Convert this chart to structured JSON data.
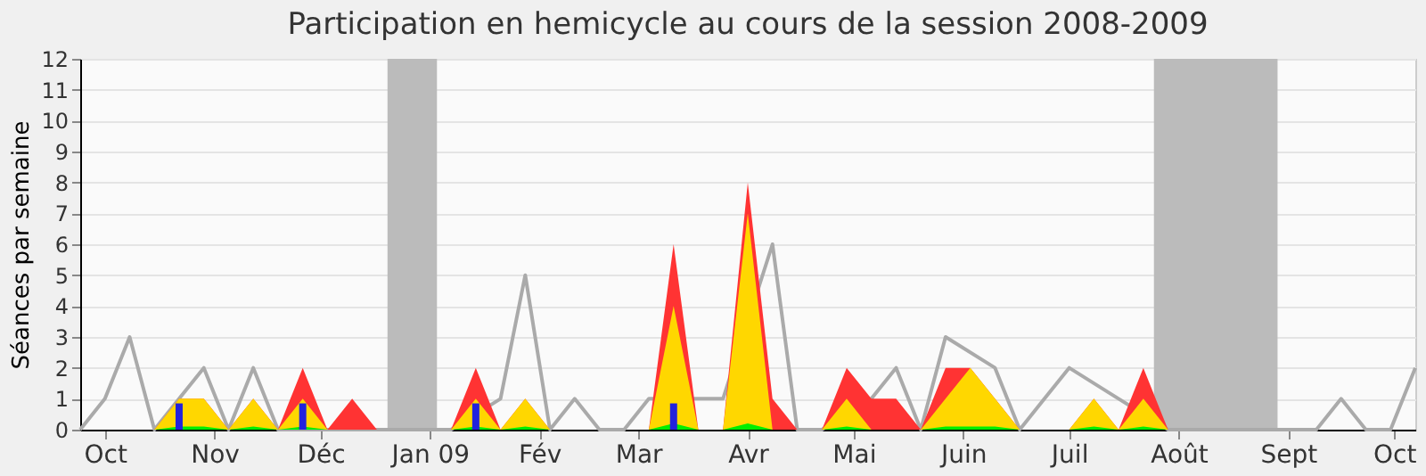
{
  "chart_data": {
    "type": "area",
    "title": "Participation en hemicycle au cours de la session 2008-2009",
    "ylabel": "Séances par semaine",
    "x": [
      "2008-09-24",
      "2008-10-01",
      "2008-10-08",
      "2008-10-15",
      "2008-10-22",
      "2008-10-29",
      "2008-11-05",
      "2008-11-12",
      "2008-11-19",
      "2008-11-26",
      "2008-12-03",
      "2008-12-10",
      "2008-12-17",
      "2008-12-24",
      "2008-12-31",
      "2009-01-07",
      "2009-01-14",
      "2009-01-21",
      "2009-01-28",
      "2009-02-04",
      "2009-02-11",
      "2009-02-18",
      "2009-02-25",
      "2009-03-04",
      "2009-03-11",
      "2009-03-18",
      "2009-03-25",
      "2009-04-01",
      "2009-04-08",
      "2009-04-15",
      "2009-04-22",
      "2009-04-29",
      "2009-05-06",
      "2009-05-13",
      "2009-05-20",
      "2009-05-27",
      "2009-06-03",
      "2009-06-10",
      "2009-06-17",
      "2009-06-24",
      "2009-07-01",
      "2009-07-08",
      "2009-07-15",
      "2009-07-22",
      "2009-07-29",
      "2009-08-05",
      "2009-08-12",
      "2009-08-19",
      "2009-08-26",
      "2009-09-02",
      "2009-09-09",
      "2009-09-16",
      "2009-09-23",
      "2009-09-30",
      "2009-10-07"
    ],
    "xlim": [
      "2008-09-24",
      "2009-10-07"
    ],
    "xticks": [
      {
        "value": "2008-10-01",
        "label": "Oct"
      },
      {
        "value": "2008-11-01",
        "label": "Nov"
      },
      {
        "value": "2008-12-01",
        "label": "Déc"
      },
      {
        "value": "2009-01-01",
        "label": "Jan 09"
      },
      {
        "value": "2009-02-01",
        "label": "Fév"
      },
      {
        "value": "2009-03-01",
        "label": "Mar"
      },
      {
        "value": "2009-04-01",
        "label": "Avr"
      },
      {
        "value": "2009-05-01",
        "label": "Mai"
      },
      {
        "value": "2009-06-01",
        "label": "Juin"
      },
      {
        "value": "2009-07-01",
        "label": "Juil"
      },
      {
        "value": "2009-08-01",
        "label": "Août"
      },
      {
        "value": "2009-09-01",
        "label": "Sept"
      },
      {
        "value": "2009-10-01",
        "label": "Oct"
      }
    ],
    "ylim": [
      0,
      12
    ],
    "yticks": [
      0,
      1,
      2,
      3,
      4,
      5,
      6,
      7,
      8,
      9,
      10,
      11,
      12
    ],
    "grid": "y",
    "bands": [
      {
        "axis": "x",
        "from": "2008-12-20",
        "to": "2009-01-03",
        "color": "#bbbbbb"
      },
      {
        "axis": "x",
        "from": "2009-07-25",
        "to": "2009-08-29",
        "color": "#bbbbbb"
      }
    ],
    "series": [
      {
        "type": "line",
        "color": "#aaaaaa",
        "values": [
          0,
          1,
          3,
          0,
          1,
          2,
          0,
          2,
          0,
          null,
          0,
          null,
          0,
          0,
          0,
          0,
          null,
          1,
          5,
          0,
          1,
          0,
          0,
          1,
          null,
          1,
          1,
          null,
          6,
          0,
          0,
          null,
          1,
          2,
          0,
          3,
          null,
          2,
          0,
          1,
          2,
          null,
          1,
          null,
          0,
          0,
          0,
          0,
          0,
          0,
          0,
          1,
          0,
          0,
          2
        ]
      },
      {
        "color": "#ff3333",
        "values": [
          0,
          0,
          0,
          0,
          1,
          1,
          0,
          1,
          0,
          2,
          0,
          1,
          0,
          0,
          0,
          0,
          2,
          0,
          1,
          0,
          0,
          0,
          0,
          0,
          6,
          0,
          0,
          8,
          1,
          0,
          0,
          2,
          1,
          1,
          0,
          2,
          2,
          1,
          0,
          0,
          0,
          1,
          0,
          2,
          0,
          0,
          0,
          0,
          0,
          0,
          0,
          0,
          0,
          0,
          0
        ]
      },
      {
        "color": "#ffd700",
        "values": [
          0,
          0,
          0,
          0,
          1,
          1,
          0,
          1,
          0,
          1,
          0,
          0,
          0,
          0,
          0,
          0,
          1,
          0,
          1,
          0,
          0,
          0,
          0,
          0,
          4,
          0,
          0,
          7,
          0,
          0,
          0,
          1,
          0,
          0,
          0,
          1,
          2,
          1,
          0,
          0,
          0,
          1,
          0,
          1,
          0,
          0,
          0,
          0,
          0,
          0,
          0,
          0,
          0,
          0,
          0
        ]
      },
      {
        "color": "#00ee00",
        "values": [
          0,
          0,
          0,
          0,
          0.1,
          0.1,
          0,
          0.1,
          0,
          0.1,
          0,
          0,
          0,
          0,
          0,
          0,
          0.1,
          0,
          0.1,
          0,
          0,
          0,
          0,
          0,
          0.2,
          0,
          0,
          0.2,
          0,
          0,
          0,
          0.1,
          0,
          0,
          0,
          0.1,
          0.1,
          0.1,
          0,
          0,
          0,
          0.1,
          0,
          0.1,
          0,
          0,
          0,
          0,
          0,
          0,
          0,
          0,
          0,
          0,
          0
        ]
      },
      {
        "type": "bar",
        "color": "#2222dd",
        "values": [
          null,
          null,
          null,
          null,
          0.85,
          null,
          null,
          null,
          null,
          0.85,
          null,
          null,
          null,
          null,
          null,
          null,
          0.85,
          null,
          null,
          null,
          null,
          null,
          null,
          null,
          0.85,
          null,
          null,
          null,
          null,
          null,
          null,
          null,
          null,
          null,
          null,
          null,
          null,
          null,
          null,
          null,
          null,
          null,
          null,
          null,
          null,
          null,
          null,
          null,
          null,
          null,
          null,
          null,
          null,
          null,
          null
        ]
      }
    ]
  }
}
